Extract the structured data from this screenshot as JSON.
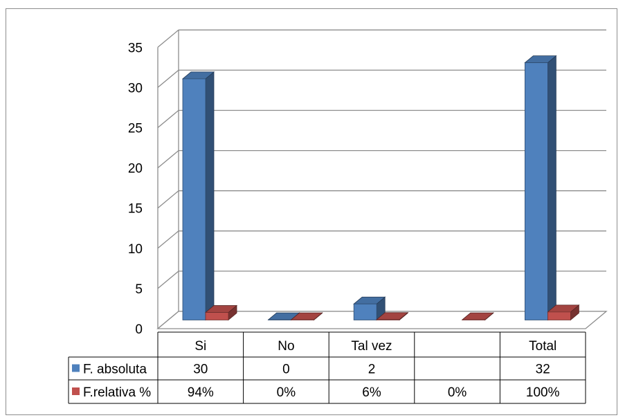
{
  "chart_data": {
    "type": "bar",
    "title": "",
    "xlabel": "",
    "ylabel": "",
    "categories": [
      "Si",
      "No",
      "Tal vez",
      "",
      "Total"
    ],
    "ylim": [
      0,
      35
    ],
    "yticks": [
      0,
      5,
      10,
      15,
      20,
      25,
      30,
      35
    ],
    "grid": true,
    "series": [
      {
        "name": "F. absoluta",
        "values": [
          30,
          0,
          2,
          null,
          32
        ],
        "table_labels": [
          "30",
          "0",
          "2",
          "",
          "32"
        ],
        "color": "#4f81bd"
      },
      {
        "name": "F.relativa %",
        "values": [
          0.94,
          0,
          0.06,
          0,
          1.0
        ],
        "table_labels": [
          "94%",
          "0%",
          "6%",
          "0%",
          "100%"
        ],
        "color": "#c0504d"
      }
    ],
    "data_table": true
  }
}
